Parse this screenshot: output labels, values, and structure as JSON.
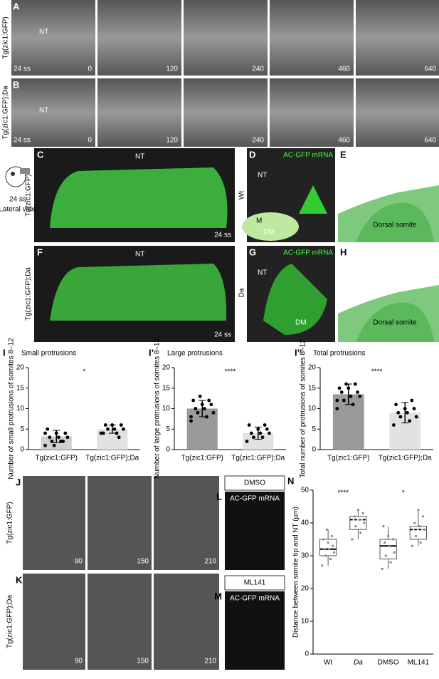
{
  "panels": {
    "A": {
      "label": "A",
      "side": "Tg(zic1:GFP)",
      "stage": "24 ss",
      "nt": "NT",
      "times": [
        "0",
        "120",
        "240",
        "460",
        "640"
      ]
    },
    "B": {
      "label": "B",
      "side": "Tg(zic1:GFP);Da",
      "stage": "24 ss",
      "nt": "NT",
      "times": [
        "0",
        "120",
        "240",
        "460",
        "640"
      ]
    },
    "icon": {
      "stage": "24 ss",
      "view": "Lateral view"
    },
    "C": {
      "label": "C",
      "side": "Tg(zic1:GFP)",
      "nt": "NT",
      "stage": "24 ss"
    },
    "D": {
      "label": "D",
      "side": "Wt",
      "title": "AC-GFP mRNA",
      "nt": "NT",
      "m": "M",
      "dm": "DM"
    },
    "E": {
      "label": "E",
      "text": "Dorsal somite"
    },
    "F": {
      "label": "F",
      "side": "Tg(zic1:GFP);Da",
      "nt": "NT",
      "stage": "24 ss"
    },
    "G": {
      "label": "G",
      "side": "Da",
      "title": "AC-GFP mRNA",
      "nt": "NT",
      "dm": "DM"
    },
    "H": {
      "label": "H",
      "text": "Dorsal somite"
    },
    "J": {
      "label": "J",
      "side": "Tg(zic1:GFP)",
      "times": [
        "90",
        "150",
        "210"
      ]
    },
    "K": {
      "label": "K",
      "side": "Tg(zic1:GFP);Da",
      "times": [
        "90",
        "150",
        "210"
      ]
    },
    "L": {
      "label": "L",
      "header": "DMSO",
      "title": "AC-GFP mRNA"
    },
    "M": {
      "label": "M",
      "header": "ML141",
      "title": "AC-GFP mRNA"
    }
  },
  "chart_data": [
    {
      "type": "bar",
      "label": "I",
      "title": "Small protrusions",
      "ylabel": "Number of small protrusions of somites 8–12",
      "categories": [
        "Tg(zic1:GFP)",
        "Tg(zic1:GFP);Da"
      ],
      "values": [
        3.2,
        5
      ],
      "errors": [
        1.5,
        1
      ],
      "colors": [
        "#d0d0d0",
        "#e2e2e2"
      ],
      "points": [
        [
          1,
          2,
          2,
          3,
          3,
          3,
          4,
          4,
          5,
          2,
          1,
          4
        ],
        [
          4,
          4,
          5,
          5,
          5,
          6,
          6,
          6,
          4,
          3
        ]
      ],
      "annotation": "*",
      "ylim": [
        0,
        20
      ],
      "yticks": [
        0,
        5,
        10,
        15,
        20
      ]
    },
    {
      "type": "bar",
      "label": "I’",
      "title": "Large protrusions",
      "ylabel": "Number of large protrusions of somites 8–12",
      "categories": [
        "Tg(zic1:GFP)",
        "Tg(zic1:GFP);Da"
      ],
      "values": [
        10,
        4
      ],
      "errors": [
        2,
        1.5
      ],
      "colors": [
        "#9a9a9a",
        "#e2e2e2"
      ],
      "points": [
        [
          7,
          8,
          9,
          9,
          10,
          10,
          11,
          11,
          12,
          12,
          13,
          8
        ],
        [
          2,
          3,
          3,
          4,
          4,
          4,
          5,
          5,
          6,
          6
        ]
      ],
      "annotation": "****",
      "ylim": [
        0,
        20
      ],
      "yticks": [
        0,
        5,
        10,
        15,
        20
      ]
    },
    {
      "type": "bar",
      "label": "I’’",
      "title": "Total protrusions",
      "ylabel": "Total number of protrusions of somites 8–12",
      "categories": [
        "Tg(zic1:GFP)",
        "Tg(zic1:GFP);Da"
      ],
      "values": [
        13.5,
        9
      ],
      "errors": [
        2.5,
        2.5
      ],
      "colors": [
        "#9a9a9a",
        "#e2e2e2"
      ],
      "points": [
        [
          10,
          11,
          12,
          13,
          13,
          14,
          14,
          15,
          15,
          16,
          16,
          12
        ],
        [
          6,
          7,
          8,
          8,
          9,
          9,
          10,
          10,
          11,
          12
        ]
      ],
      "annotation": "****",
      "ylim": [
        0,
        20
      ],
      "yticks": [
        0,
        5,
        10,
        15,
        20
      ]
    },
    {
      "type": "box",
      "label": "N",
      "ylabel": "Distance between somite tip and NT (µm)",
      "categories": [
        "Wt",
        "Da",
        "DMSO",
        "ML141"
      ],
      "boxes": [
        {
          "min": 27,
          "q1": 30,
          "median": 32,
          "q3": 35,
          "max": 38
        },
        {
          "min": 35,
          "q1": 38,
          "median": 41,
          "q3": 42,
          "max": 44
        },
        {
          "min": 26,
          "q1": 29,
          "median": 33,
          "q3": 35,
          "max": 39
        },
        {
          "min": 33,
          "q1": 35,
          "median": 38,
          "q3": 39,
          "max": 44
        }
      ],
      "points": [
        [
          27,
          29,
          30,
          31,
          32,
          32,
          33,
          34,
          35,
          36,
          38
        ],
        [
          35,
          37,
          39,
          40,
          41,
          42,
          43,
          44
        ],
        [
          26,
          28,
          30,
          31,
          33,
          34,
          35,
          36,
          39
        ],
        [
          33,
          34,
          36,
          38,
          39,
          40,
          42,
          44
        ]
      ],
      "annotations": [
        "****",
        "*"
      ],
      "ylim": [
        0,
        50
      ],
      "yticks": [
        0,
        10,
        20,
        30,
        40,
        50
      ]
    }
  ]
}
